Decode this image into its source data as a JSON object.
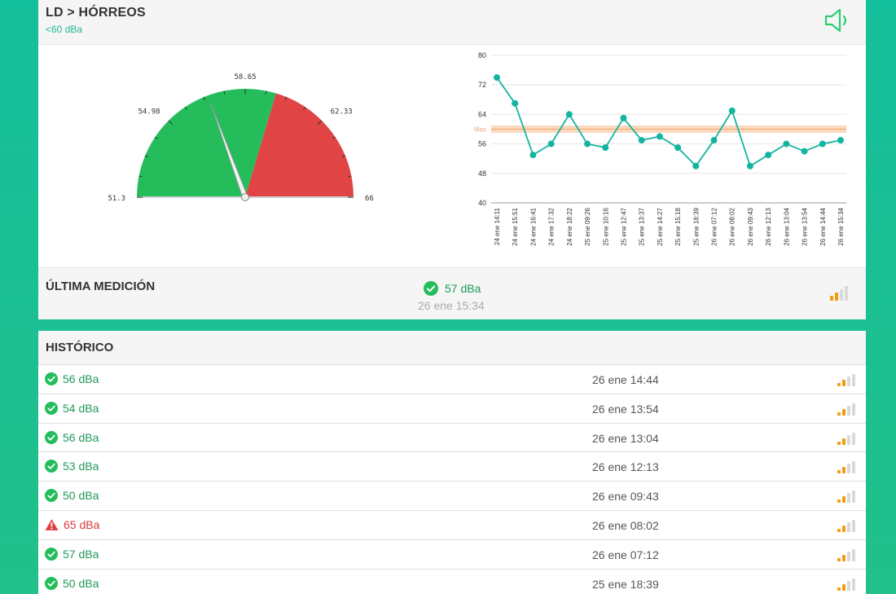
{
  "header": {
    "title": "LD > HÓRREOS",
    "subtitle": "<60 dBa"
  },
  "gauge": {
    "min": 51.3,
    "max": 66,
    "value": 57,
    "threshold": 60,
    "tick_labels": [
      "51.3",
      "54.98",
      "58.65",
      "62.33",
      "66"
    ],
    "colors": {
      "ok": "#25bd5c",
      "alert": "#e04444"
    }
  },
  "chart_data": {
    "type": "line",
    "x": [
      "24 ene 14:11",
      "24 ene 15:51",
      "24 ene 16:41",
      "24 ene 17:32",
      "24 ene 18:22",
      "25 ene 09:26",
      "25 ene 10:16",
      "25 ene 12:47",
      "25 ene 13:37",
      "25 ene 14:27",
      "25 ene 15:18",
      "25 ene 18:39",
      "26 ene 07:12",
      "26 ene 08:02",
      "26 ene 09:43",
      "26 ene 12:13",
      "26 ene 13:04",
      "26 ene 13:54",
      "26 ene 14:44",
      "26 ene 15:34"
    ],
    "series": [
      {
        "values": [
          74,
          67,
          53,
          56,
          64,
          56,
          55,
          63,
          57,
          58,
          55,
          50,
          57,
          65,
          50,
          53,
          56,
          54,
          56,
          57
        ],
        "color": "#13b5a0"
      }
    ],
    "threshold": {
      "label": "Max",
      "value": 60,
      "color": "#f7b98a"
    },
    "yticks": [
      "40",
      "48",
      "56",
      "64",
      "72",
      "80"
    ],
    "ylim": [
      40,
      80
    ],
    "grid": true
  },
  "last_measurement": {
    "title": "ÚLTIMA MEDICIÓN",
    "value": "57 dBa",
    "time": "26 ene 15:34",
    "status": "ok",
    "signal_level": 2
  },
  "history": {
    "title": "HISTÓRICO",
    "rows": [
      {
        "value": "56 dBa",
        "time": "26 ene 14:44",
        "status": "ok",
        "signal_level": 2
      },
      {
        "value": "54 dBa",
        "time": "26 ene 13:54",
        "status": "ok",
        "signal_level": 2
      },
      {
        "value": "56 dBa",
        "time": "26 ene 13:04",
        "status": "ok",
        "signal_level": 2
      },
      {
        "value": "53 dBa",
        "time": "26 ene 12:13",
        "status": "ok",
        "signal_level": 2
      },
      {
        "value": "50 dBa",
        "time": "26 ene 09:43",
        "status": "ok",
        "signal_level": 2
      },
      {
        "value": "65 dBa",
        "time": "26 ene 08:02",
        "status": "alert",
        "signal_level": 2
      },
      {
        "value": "57 dBa",
        "time": "26 ene 07:12",
        "status": "ok",
        "signal_level": 2
      },
      {
        "value": "50 dBa",
        "time": "25 ene 18:39",
        "status": "ok",
        "signal_level": 2
      }
    ]
  },
  "icons": {
    "speaker": "speaker-icon",
    "ok": "check-circle-icon",
    "alert": "warning-triangle-icon",
    "signal": "signal-strength-icon"
  }
}
